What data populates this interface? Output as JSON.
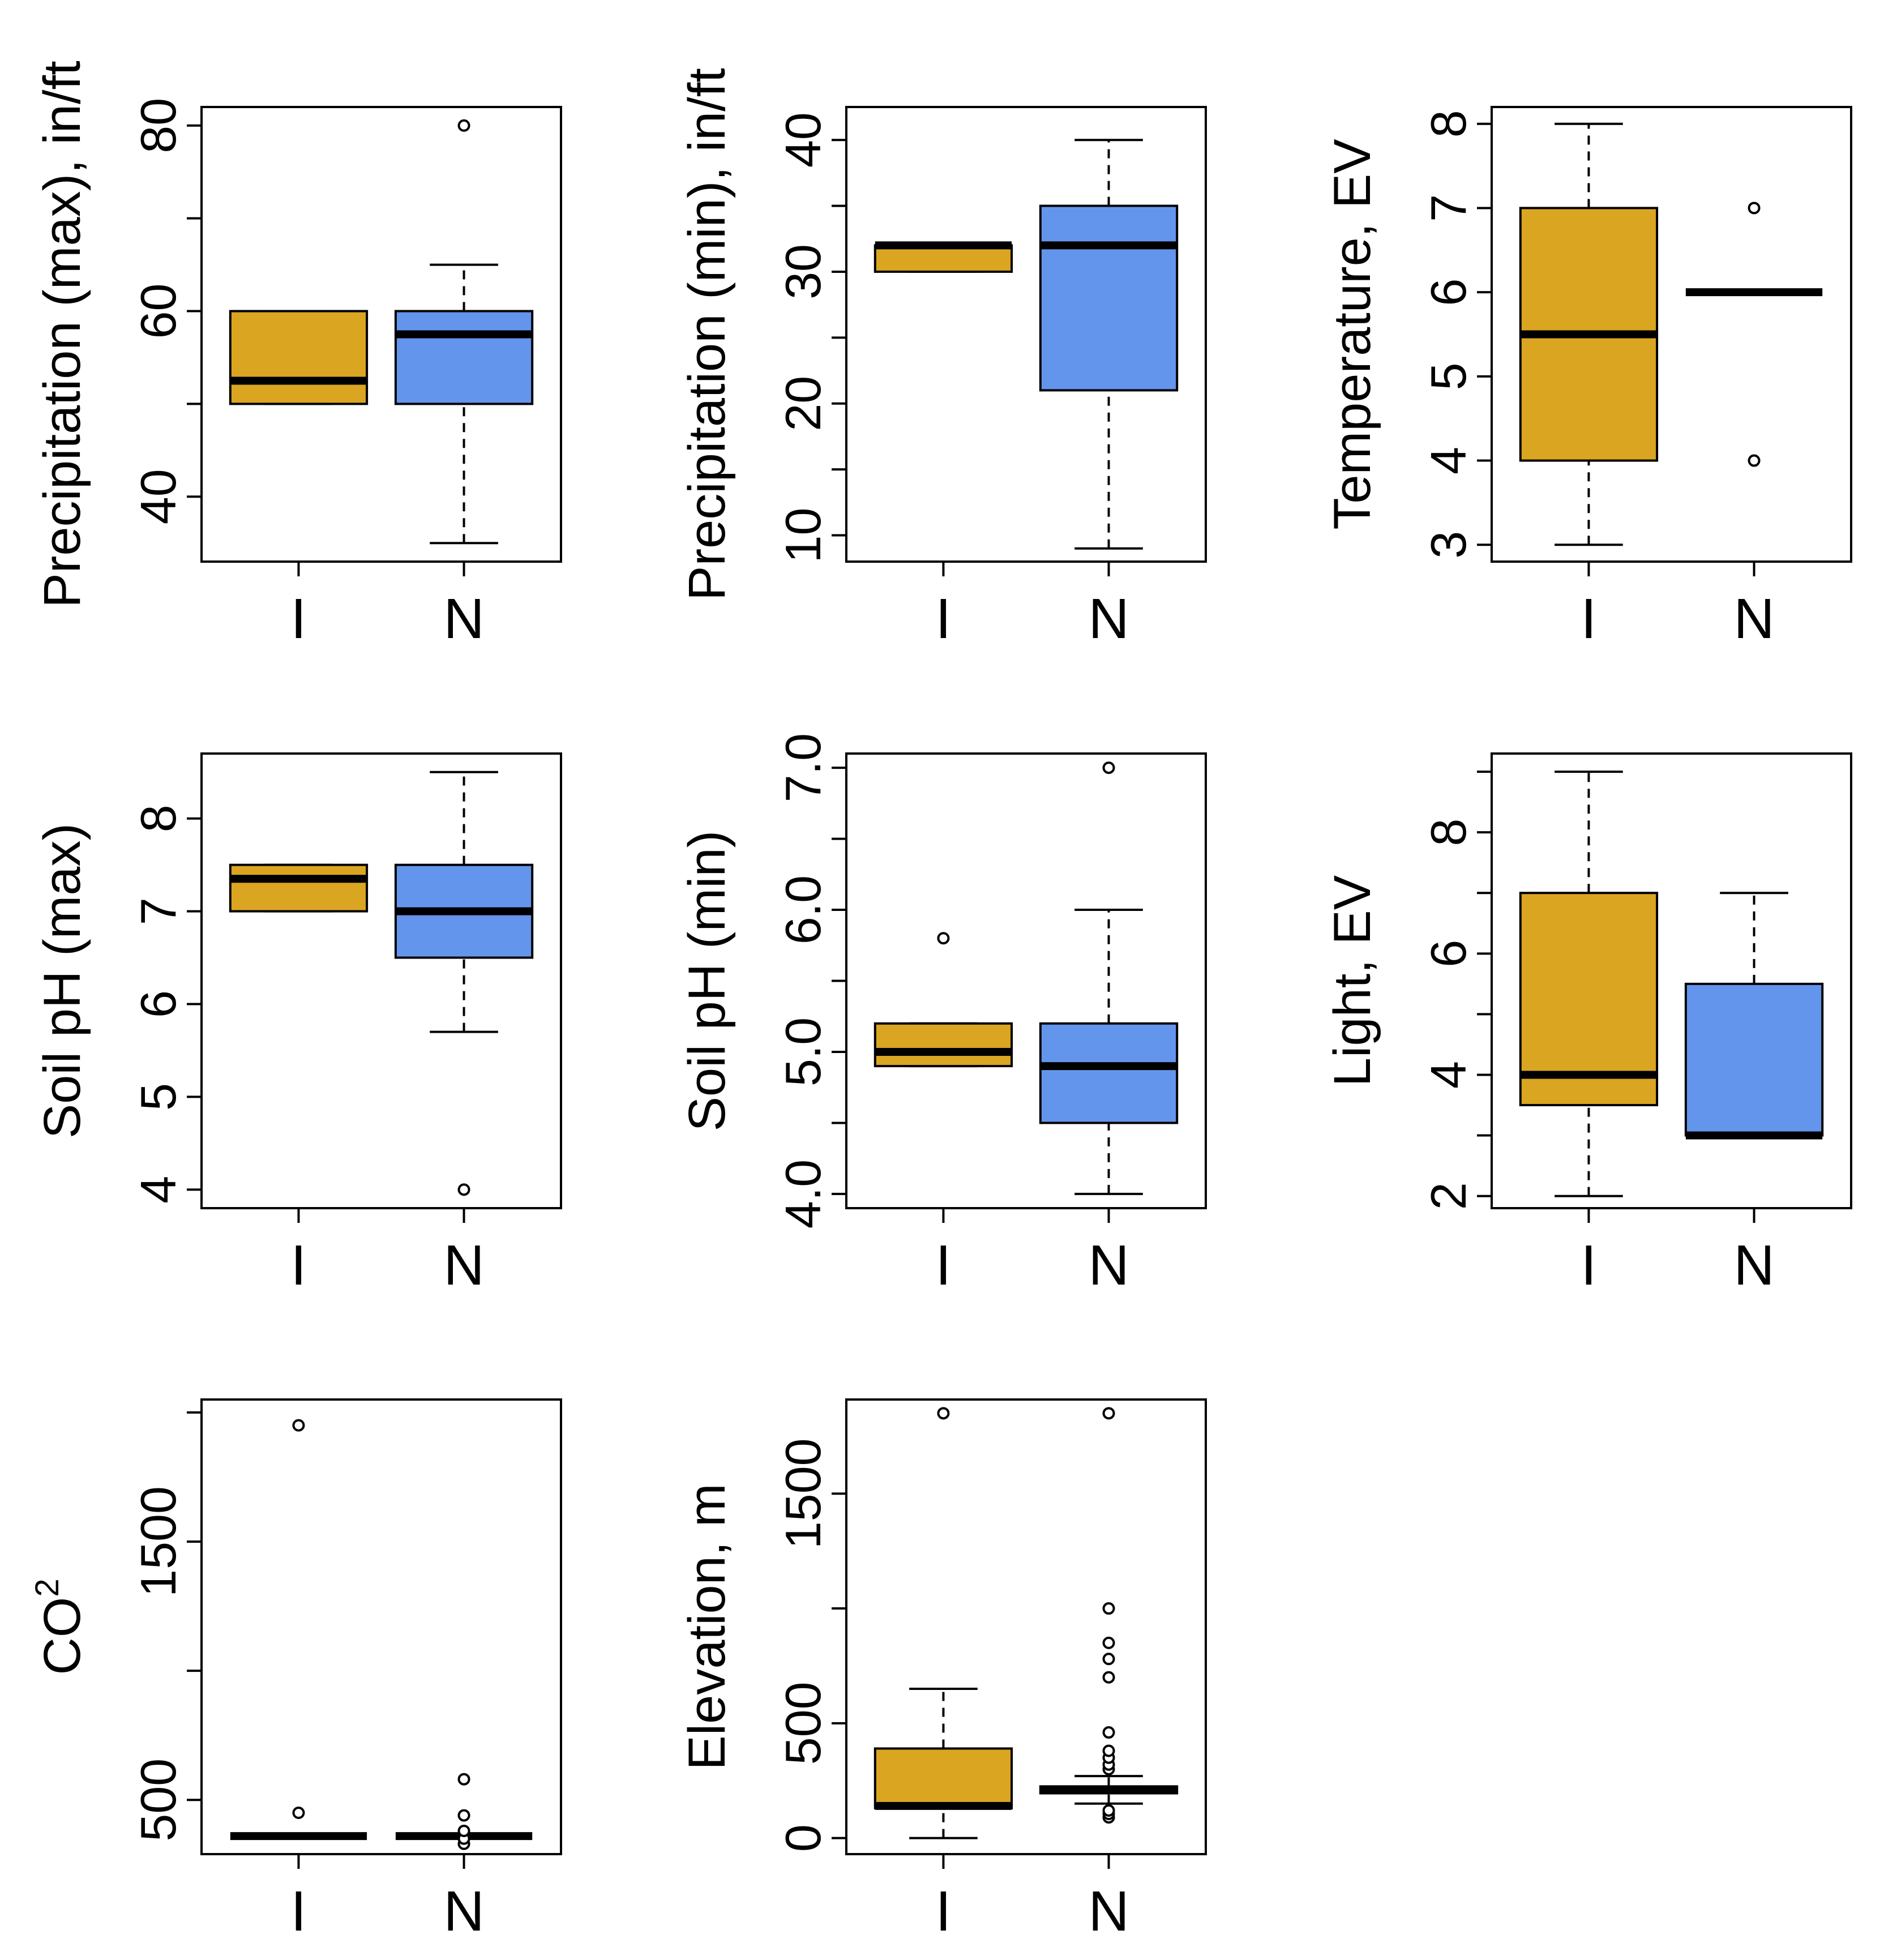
{
  "colors": {
    "I": "#DAA520",
    "N": "#6495ED",
    "line": "#000000",
    "background": "#FFFFFF"
  },
  "chart_data": [
    {
      "type": "boxplot",
      "ylabel": "Precipitation (max), in/ft",
      "groups": [
        "I",
        "N"
      ],
      "ylim": [
        33,
        82
      ],
      "yticks": [
        40,
        60,
        80
      ],
      "ytick_labels": [
        "40",
        "60",
        "80"
      ],
      "yticks_minor": [
        50,
        70
      ],
      "boxes": [
        {
          "group": "I",
          "whisker_low": 50,
          "q1": 50,
          "median": 52.5,
          "q3": 60,
          "whisker_high": 60,
          "outliers": []
        },
        {
          "group": "N",
          "whisker_low": 35,
          "q1": 50,
          "median": 57.5,
          "q3": 60,
          "whisker_high": 65,
          "outliers": [
            80
          ]
        }
      ]
    },
    {
      "type": "boxplot",
      "ylabel": "Precipitation (min), in/ft",
      "groups": [
        "I",
        "N"
      ],
      "ylim": [
        8,
        42.5
      ],
      "yticks": [
        10,
        20,
        30,
        40
      ],
      "ytick_labels": [
        "10",
        "20",
        "30",
        "40"
      ],
      "yticks_minor": [
        15,
        25,
        35
      ],
      "boxes": [
        {
          "group": "I",
          "whisker_low": 30,
          "q1": 30,
          "median": 32,
          "q3": 32,
          "whisker_high": 32,
          "outliers": []
        },
        {
          "group": "N",
          "whisker_low": 9,
          "q1": 21,
          "median": 32,
          "q3": 35,
          "whisker_high": 40,
          "outliers": []
        }
      ]
    },
    {
      "type": "boxplot",
      "ylabel": "Temperature, EV",
      "groups": [
        "I",
        "N"
      ],
      "ylim": [
        2.8,
        8.2
      ],
      "yticks": [
        3,
        4,
        5,
        6,
        7,
        8
      ],
      "ytick_labels": [
        "3",
        "4",
        "5",
        "6",
        "7",
        "8"
      ],
      "yticks_minor": [],
      "boxes": [
        {
          "group": "I",
          "whisker_low": 3,
          "q1": 4,
          "median": 5.5,
          "q3": 7,
          "whisker_high": 8,
          "outliers": []
        },
        {
          "group": "N",
          "whisker_low": 6,
          "q1": 6,
          "median": 6,
          "q3": 6,
          "whisker_high": 6,
          "outliers": [
            4,
            7
          ]
        }
      ]
    },
    {
      "type": "boxplot",
      "ylabel": "Soil pH (max)",
      "groups": [
        "I",
        "N"
      ],
      "ylim": [
        3.8,
        8.7
      ],
      "yticks": [
        4,
        5,
        6,
        7,
        8
      ],
      "ytick_labels": [
        "4",
        "5",
        "6",
        "7",
        "8"
      ],
      "yticks_minor": [],
      "boxes": [
        {
          "group": "I",
          "whisker_low": 7,
          "q1": 7,
          "median": 7.35,
          "q3": 7.5,
          "whisker_high": 7.5,
          "outliers": []
        },
        {
          "group": "N",
          "whisker_low": 5.7,
          "q1": 6.5,
          "median": 7,
          "q3": 7.5,
          "whisker_high": 8.5,
          "outliers": [
            4
          ]
        }
      ]
    },
    {
      "type": "boxplot",
      "ylabel": "Soil pH (min)",
      "groups": [
        "I",
        "N"
      ],
      "ylim": [
        3.9,
        7.1
      ],
      "yticks": [
        4.0,
        5.0,
        6.0,
        7.0
      ],
      "ytick_labels": [
        "4.0",
        "5.0",
        "6.0",
        "7.0"
      ],
      "yticks_minor": [
        4.5,
        5.5,
        6.5
      ],
      "boxes": [
        {
          "group": "I",
          "whisker_low": 4.9,
          "q1": 4.9,
          "median": 5.0,
          "q3": 5.2,
          "whisker_high": 5.2,
          "outliers": [
            5.8
          ]
        },
        {
          "group": "N",
          "whisker_low": 4.0,
          "q1": 4.5,
          "median": 4.9,
          "q3": 5.2,
          "whisker_high": 6.0,
          "outliers": [
            7.0
          ]
        }
      ]
    },
    {
      "type": "boxplot",
      "ylabel": "Light, EV",
      "groups": [
        "I",
        "N"
      ],
      "ylim": [
        1.8,
        9.3
      ],
      "yticks": [
        2,
        4,
        6,
        8
      ],
      "ytick_labels": [
        "2",
        "4",
        "6",
        "8"
      ],
      "yticks_minor": [
        3,
        5,
        7,
        9
      ],
      "boxes": [
        {
          "group": "I",
          "whisker_low": 2,
          "q1": 3.5,
          "median": 4,
          "q3": 7,
          "whisker_high": 9,
          "outliers": []
        },
        {
          "group": "N",
          "whisker_low": 3,
          "q1": 3,
          "median": 3,
          "q3": 5.5,
          "whisker_high": 7,
          "outliers": []
        }
      ]
    },
    {
      "type": "boxplot",
      "ylabel": "CO",
      "ylabel_superscript": "2",
      "groups": [
        "I",
        "N"
      ],
      "ylim": [
        290,
        2050
      ],
      "yticks": [
        500,
        1500
      ],
      "ytick_labels": [
        "500",
        "1500"
      ],
      "yticks_minor": [
        1000,
        2000
      ],
      "boxes": [
        {
          "group": "I",
          "whisker_low": 360,
          "q1": 360,
          "median": 360,
          "q3": 360,
          "whisker_high": 360,
          "outliers": [
            450,
            1950
          ]
        },
        {
          "group": "N",
          "whisker_low": 360,
          "q1": 360,
          "median": 360,
          "q3": 360,
          "whisker_high": 360,
          "outliers": [
            330,
            350,
            380,
            440,
            580
          ]
        }
      ]
    },
    {
      "type": "boxplot",
      "ylabel": "Elevation, m",
      "groups": [
        "I",
        "N"
      ],
      "ylim": [
        -70,
        1910
      ],
      "yticks": [
        0,
        500,
        1500
      ],
      "ytick_labels": [
        "0",
        "500",
        "1500"
      ],
      "yticks_minor": [
        1000
      ],
      "boxes": [
        {
          "group": "I",
          "whisker_low": 0,
          "q1": 130,
          "median": 140,
          "q3": 390,
          "whisker_high": 650,
          "outliers": [
            1850
          ]
        },
        {
          "group": "N",
          "whisker_low": 150,
          "q1": 195,
          "median": 210,
          "q3": 225,
          "whisker_high": 270,
          "outliers": [
            90,
            105,
            120,
            300,
            320,
            350,
            380,
            460,
            700,
            780,
            850,
            1000,
            1850
          ]
        }
      ]
    }
  ]
}
